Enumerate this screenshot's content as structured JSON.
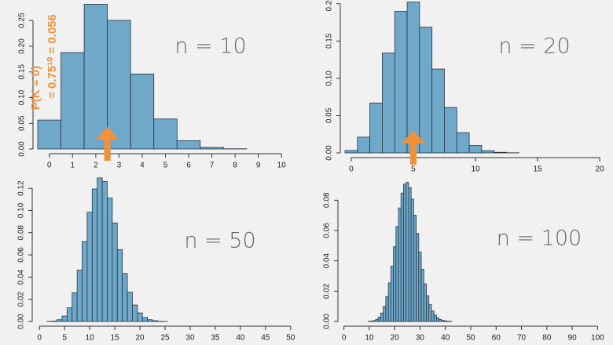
{
  "chart_data": [
    {
      "type": "bar",
      "annotation": "n = 10",
      "notes": [
        "P(K = 0)",
        "= 0.75¹⁰ = 0.056"
      ],
      "note_color": "#f0923a",
      "x": [
        0,
        1,
        2,
        3,
        4,
        5,
        6,
        7,
        8,
        9,
        10
      ],
      "values": [
        0.0563,
        0.1877,
        0.2816,
        0.2503,
        0.146,
        0.0584,
        0.0162,
        0.0031,
        0.0004,
        0,
        0
      ],
      "xlim": [
        -0.5,
        10.5
      ],
      "ylim": [
        0,
        0.29
      ],
      "xticks": [
        0,
        1,
        2,
        3,
        4,
        5,
        6,
        7,
        8,
        9,
        10
      ],
      "yticks": [
        {
          "value": 0,
          "label": "0.00"
        },
        {
          "value": 0.05,
          "label": "0.05"
        },
        {
          "value": 0.1,
          "label": "0.10"
        },
        {
          "value": 0.15,
          "label": "0.15"
        },
        {
          "value": 0.2,
          "label": "0.20"
        },
        {
          "value": 0.25,
          "label": "0.25"
        }
      ],
      "color": "#6fa8c8",
      "mean": 2.5,
      "mean_color": "#f0923a"
    },
    {
      "type": "bar",
      "annotation": "n = 20",
      "x": [
        0,
        1,
        2,
        3,
        4,
        5,
        6,
        7,
        8,
        9,
        10,
        11,
        12,
        13,
        14,
        15,
        16,
        17,
        18,
        19,
        20
      ],
      "values": [
        0.0032,
        0.0211,
        0.0669,
        0.1339,
        0.1897,
        0.2023,
        0.1686,
        0.1124,
        0.0609,
        0.0271,
        0.0099,
        0.003,
        0.0008,
        0.0002,
        0,
        0,
        0,
        0,
        0,
        0,
        0
      ],
      "xlim": [
        -0.5,
        20.5
      ],
      "ylim": [
        0,
        0.205
      ],
      "xticks": [
        0,
        5,
        10,
        15,
        20
      ],
      "yticks": [
        {
          "value": 0,
          "label": "0.00"
        },
        {
          "value": 0.05,
          "label": "0.05"
        },
        {
          "value": 0.1,
          "label": "0.10"
        },
        {
          "value": 0.15,
          "label": "0.15"
        },
        {
          "value": 0.2,
          "label": "0.20"
        }
      ],
      "color": "#6fa8c8",
      "mean": 5,
      "mean_color": "#f0923a"
    },
    {
      "type": "bar",
      "annotation": "n = 50",
      "x": [
        0,
        1,
        2,
        3,
        4,
        5,
        6,
        7,
        8,
        9,
        10,
        11,
        12,
        13,
        14,
        15,
        16,
        17,
        18,
        19,
        20,
        21,
        22,
        23,
        24,
        25,
        26,
        27,
        28,
        29,
        30,
        31,
        32,
        33,
        34,
        35
      ],
      "values": [
        0,
        0,
        0.0001,
        0.0004,
        0.0016,
        0.0049,
        0.0123,
        0.0259,
        0.0463,
        0.0721,
        0.0985,
        0.1194,
        0.1294,
        0.1261,
        0.1111,
        0.0888,
        0.0648,
        0.0432,
        0.0264,
        0.0148,
        0.0077,
        0.0036,
        0.0016,
        0.0007,
        0.0002,
        0.0001,
        0,
        0,
        0,
        0,
        0,
        0,
        0,
        0,
        0,
        0
      ],
      "xlim": [
        -0.5,
        50.5
      ],
      "ylim": [
        0,
        0.13
      ],
      "xticks": [
        0,
        5,
        10,
        15,
        20,
        25,
        30,
        35,
        40,
        45,
        50
      ],
      "yticks": [
        {
          "value": 0,
          "label": "0.00"
        },
        {
          "value": 0.02,
          "label": "0.02"
        },
        {
          "value": 0.04,
          "label": "0.04"
        },
        {
          "value": 0.06,
          "label": "0.06"
        },
        {
          "value": 0.08,
          "label": "0.08"
        },
        {
          "value": 0.1,
          "label": "0.10"
        },
        {
          "value": 0.12,
          "label": "0.12"
        }
      ],
      "color": "#6fa8c8"
    },
    {
      "type": "bar",
      "annotation": "n = 100",
      "x": [
        8,
        9,
        10,
        11,
        12,
        13,
        14,
        15,
        16,
        17,
        18,
        19,
        20,
        21,
        22,
        23,
        24,
        25,
        26,
        27,
        28,
        29,
        30,
        31,
        32,
        33,
        34,
        35,
        36,
        37,
        38,
        39,
        40,
        41,
        42,
        43,
        44,
        45
      ],
      "values": [
        0,
        0,
        0.0001,
        0.0003,
        0.0006,
        0.0014,
        0.0029,
        0.0056,
        0.01,
        0.0165,
        0.0254,
        0.0365,
        0.0493,
        0.0626,
        0.0749,
        0.0847,
        0.0906,
        0.0918,
        0.0883,
        0.0807,
        0.0701,
        0.058,
        0.0458,
        0.0344,
        0.0248,
        0.017,
        0.0112,
        0.007,
        0.0042,
        0.0024,
        0.0013,
        0.0007,
        0.0004,
        0.0002,
        0.0001,
        0,
        0,
        0
      ],
      "xlim": [
        -0.5,
        100.5
      ],
      "ylim": [
        0,
        0.09
      ],
      "xticks": [
        0,
        10,
        20,
        30,
        40,
        50,
        60,
        70,
        80,
        90,
        100
      ],
      "yticks": [
        {
          "value": 0,
          "label": "0.00"
        },
        {
          "value": 0.02,
          "label": "0.02"
        },
        {
          "value": 0.04,
          "label": "0.04"
        },
        {
          "value": 0.06,
          "label": "0.06"
        },
        {
          "value": 0.08,
          "label": "0.08"
        }
      ],
      "color": "#6fa8c8"
    }
  ]
}
